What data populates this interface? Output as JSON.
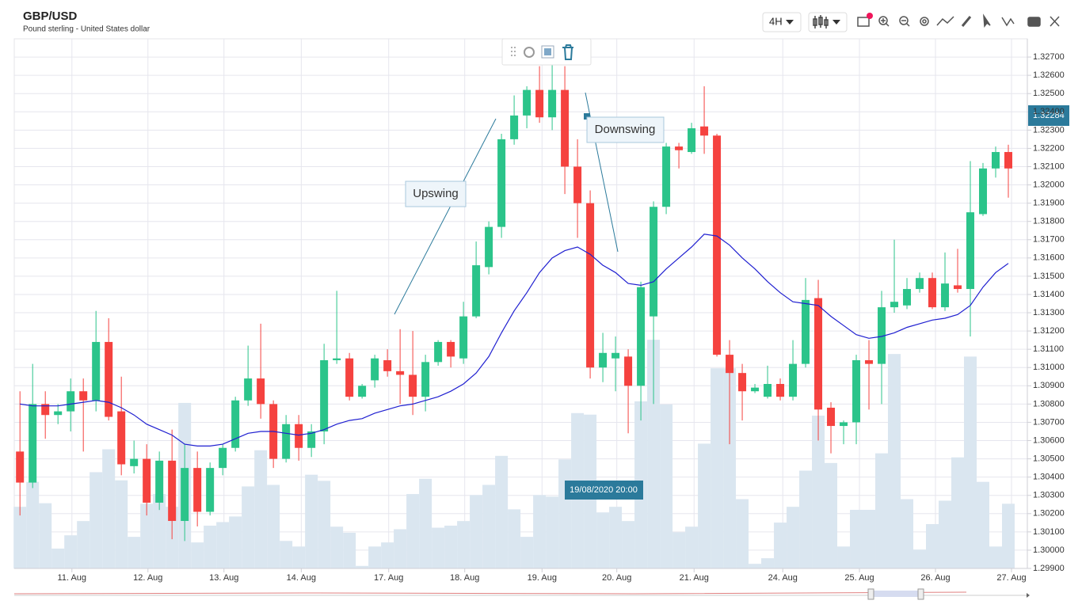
{
  "chart_data": {
    "type": "candlestick",
    "title": "GBP/USD",
    "subtitle": "Pound sterling - United States dollar",
    "timeframe": "4H",
    "open": [
      1.3054,
      1.3037,
      1.308,
      1.3074,
      1.3076,
      1.3087,
      1.3082,
      1.3114,
      1.3076,
      1.3046,
      1.305,
      1.3026,
      1.3049,
      1.3016,
      1.3045,
      1.3021,
      1.3045,
      1.3056,
      1.3082,
      1.3094,
      1.308,
      1.305,
      1.3069,
      1.3056,
      1.3065,
      1.3104,
      1.3105,
      1.3084,
      1.3093,
      1.3104,
      1.3098,
      1.3096,
      1.3084,
      1.3103,
      1.3114,
      1.3105,
      1.3128,
      1.3155,
      1.3177,
      1.3225,
      1.3238,
      1.3252,
      1.3237,
      1.3252,
      1.321,
      1.319,
      1.31,
      1.3105,
      1.3106,
      1.309,
      1.3128,
      1.3188,
      1.3221,
      1.3218,
      1.3232,
      1.3227,
      1.3107,
      1.3097,
      1.3087,
      1.3084,
      1.3091,
      1.3084,
      1.3102,
      1.3138,
      1.3078,
      1.3068,
      1.307,
      1.3104,
      1.3102,
      1.3133,
      1.3134,
      1.3143,
      1.3149,
      1.3133,
      1.3145,
      1.3143,
      1.3184,
      1.3209,
      1.3218
    ],
    "high": [
      1.3087,
      1.3102,
      1.3087,
      1.308,
      1.3094,
      1.3094,
      1.3131,
      1.3127,
      1.3095,
      1.306,
      1.3058,
      1.3054,
      1.3066,
      1.3058,
      1.3054,
      1.3048,
      1.3058,
      1.3084,
      1.3112,
      1.3124,
      1.3082,
      1.3074,
      1.3074,
      1.3069,
      1.3113,
      1.3142,
      1.3108,
      1.3091,
      1.3107,
      1.311,
      1.3121,
      1.312,
      1.3107,
      1.3115,
      1.3115,
      1.3136,
      1.3169,
      1.318,
      1.3228,
      1.3249,
      1.3254,
      1.3265,
      1.3269,
      1.3265,
      1.3225,
      1.3197,
      1.3119,
      1.3117,
      1.311,
      1.3147,
      1.3191,
      1.3223,
      1.3223,
      1.3234,
      1.3254,
      1.3228,
      1.3115,
      1.3102,
      1.3091,
      1.3101,
      1.3094,
      1.3115,
      1.3149,
      1.3148,
      1.3081,
      1.3071,
      1.3107,
      1.3115,
      1.3142,
      1.317,
      1.3149,
      1.3152,
      1.3152,
      1.3163,
      1.3165,
      1.3213,
      1.3212,
      1.3221,
      1.3222
    ],
    "low": [
      1.3019,
      1.3034,
      1.3061,
      1.3069,
      1.3065,
      1.3054,
      1.3076,
      1.3071,
      1.3041,
      1.3042,
      1.3019,
      1.3022,
      1.3006,
      1.3005,
      1.3013,
      1.3019,
      1.3041,
      1.3054,
      1.3079,
      1.3072,
      1.3045,
      1.3048,
      1.3049,
      1.3051,
      1.3058,
      1.3102,
      1.3082,
      1.3083,
      1.3089,
      1.3095,
      1.308,
      1.3074,
      1.3076,
      1.3101,
      1.31,
      1.3102,
      1.3127,
      1.3151,
      1.3171,
      1.3222,
      1.3231,
      1.3234,
      1.323,
      1.3195,
      1.3171,
      1.3094,
      1.3092,
      1.3087,
      1.3064,
      1.3071,
      1.308,
      1.3184,
      1.3209,
      1.3217,
      1.3217,
      1.3106,
      1.3058,
      1.3071,
      1.3086,
      1.3083,
      1.3082,
      1.3082,
      1.31,
      1.306,
      1.3053,
      1.3058,
      1.3058,
      1.3077,
      1.308,
      1.313,
      1.3132,
      1.3141,
      1.3132,
      1.3131,
      1.3141,
      1.3117,
      1.3183,
      1.3204,
      1.3193
    ],
    "close": [
      1.3037,
      1.308,
      1.3074,
      1.3076,
      1.3087,
      1.3082,
      1.3114,
      1.3073,
      1.3047,
      1.305,
      1.3026,
      1.3049,
      1.3016,
      1.3045,
      1.3021,
      1.3045,
      1.3056,
      1.3082,
      1.3094,
      1.308,
      1.305,
      1.3069,
      1.3056,
      1.3065,
      1.3104,
      1.3105,
      1.3084,
      1.309,
      1.3105,
      1.3098,
      1.3096,
      1.3084,
      1.3103,
      1.3114,
      1.3106,
      1.3128,
      1.3156,
      1.3177,
      1.3225,
      1.3238,
      1.3252,
      1.3237,
      1.3252,
      1.321,
      1.319,
      1.31,
      1.3108,
      1.3108,
      1.309,
      1.3144,
      1.3188,
      1.3221,
      1.3219,
      1.3231,
      1.3227,
      1.3107,
      1.3097,
      1.3087,
      1.3089,
      1.3091,
      1.3084,
      1.3102,
      1.3137,
      1.3077,
      1.3068,
      1.307,
      1.3104,
      1.3102,
      1.3133,
      1.3136,
      1.3143,
      1.3149,
      1.3133,
      1.3146,
      1.3143,
      1.3185,
      1.3209,
      1.3218,
      1.3209
    ],
    "volume": [
      12.1,
      17.0,
      12.8,
      3.9,
      6.5,
      9.3,
      18.9,
      23.4,
      17.3,
      6.2,
      12.7,
      14.6,
      12.1,
      32.5,
      5.1,
      8.4,
      9.1,
      10.2,
      16.1,
      23.2,
      16.4,
      5.4,
      4.3,
      18.4,
      17.2,
      8.2,
      7.0,
      0.5,
      4.3,
      5.1,
      7.7,
      14.6,
      17.6,
      8.0,
      8.4,
      9.3,
      14.4,
      16.4,
      22.1,
      11.6,
      6.2,
      14.4,
      14.1,
      21.4,
      30.5,
      30.2,
      11.0,
      12.1,
      9.3,
      32.8,
      44.9,
      32.2,
      7.1,
      8.2,
      24.5,
      39.3,
      39.3,
      13.6,
      0.9,
      2.0,
      9.0,
      12.1,
      19.2,
      30.0,
      20.7,
      4.3,
      11.5,
      11.5,
      22.6,
      42.1,
      13.6,
      3.7,
      8.7,
      13.3,
      21.8,
      41.6,
      17.0,
      4.3,
      12.7
    ],
    "moving_average": [
      1.308,
      1.3079,
      1.3079,
      1.3079,
      1.308,
      1.3081,
      1.3082,
      1.3081,
      1.3078,
      1.3074,
      1.3069,
      1.3066,
      1.3063,
      1.3058,
      1.3057,
      1.3057,
      1.3058,
      1.3061,
      1.3064,
      1.3065,
      1.3065,
      1.3064,
      1.3063,
      1.3064,
      1.3066,
      1.3069,
      1.3071,
      1.3072,
      1.3075,
      1.3077,
      1.3079,
      1.308,
      1.3082,
      1.3084,
      1.3087,
      1.3091,
      1.3097,
      1.3106,
      1.3119,
      1.3131,
      1.3141,
      1.3152,
      1.316,
      1.3164,
      1.3166,
      1.3162,
      1.3156,
      1.3152,
      1.3146,
      1.3145,
      1.3147,
      1.3154,
      1.316,
      1.3166,
      1.3173,
      1.3172,
      1.3167,
      1.316,
      1.3154,
      1.3147,
      1.3141,
      1.3136,
      1.3135,
      1.3134,
      1.3128,
      1.3123,
      1.3118,
      1.3116,
      1.3117,
      1.3119,
      1.3122,
      1.3124,
      1.3126,
      1.3127,
      1.3129,
      1.3134,
      1.3144,
      1.3152,
      1.3157
    ],
    "ylim": [
      1.299,
      1.328
    ],
    "yticks": [
      {
        "value": 1.299,
        "label": "1.29900"
      },
      {
        "value": 1.3,
        "label": "1.30000"
      },
      {
        "value": 1.301,
        "label": "1.30100"
      },
      {
        "value": 1.302,
        "label": "1.30200"
      },
      {
        "value": 1.303,
        "label": "1.30300"
      },
      {
        "value": 1.304,
        "label": "1.30400"
      },
      {
        "value": 1.305,
        "label": "1.30500"
      },
      {
        "value": 1.306,
        "label": "1.30600"
      },
      {
        "value": 1.307,
        "label": "1.30700"
      },
      {
        "value": 1.308,
        "label": "1.30800"
      },
      {
        "value": 1.309,
        "label": "1.30900"
      },
      {
        "value": 1.31,
        "label": "1.31000"
      },
      {
        "value": 1.311,
        "label": "1.31100"
      },
      {
        "value": 1.312,
        "label": "1.31200"
      },
      {
        "value": 1.313,
        "label": "1.31300"
      },
      {
        "value": 1.314,
        "label": "1.31400"
      },
      {
        "value": 1.315,
        "label": "1.31500"
      },
      {
        "value": 1.316,
        "label": "1.31600"
      },
      {
        "value": 1.317,
        "label": "1.31700"
      },
      {
        "value": 1.318,
        "label": "1.31800"
      },
      {
        "value": 1.319,
        "label": "1.31900"
      },
      {
        "value": 1.32,
        "label": "1.32000"
      },
      {
        "value": 1.321,
        "label": "1.32100"
      },
      {
        "value": 1.322,
        "label": "1.32200"
      },
      {
        "value": 1.323,
        "label": "1.32300"
      },
      {
        "value": 1.324,
        "label": "1.32400"
      },
      {
        "value": 1.325,
        "label": "1.32500"
      },
      {
        "value": 1.326,
        "label": "1.32600"
      },
      {
        "value": 1.327,
        "label": "1.32700"
      }
    ],
    "xlim": [
      -0.45,
      79.5
    ],
    "xticks": [
      {
        "value": 4.1,
        "label": "11. Aug"
      },
      {
        "value": 10.1,
        "label": "12. Aug"
      },
      {
        "value": 16.1,
        "label": "13. Aug"
      },
      {
        "value": 22.2,
        "label": "14. Aug"
      },
      {
        "value": 29.1,
        "label": "17. Aug"
      },
      {
        "value": 35.1,
        "label": "18. Aug"
      },
      {
        "value": 41.2,
        "label": "19. Aug"
      },
      {
        "value": 47.1,
        "label": "20. Aug"
      },
      {
        "value": 53.2,
        "label": "21. Aug"
      },
      {
        "value": 60.2,
        "label": "24. Aug"
      },
      {
        "value": 66.25,
        "label": "25. Aug"
      },
      {
        "value": 72.25,
        "label": "26. Aug"
      },
      {
        "value": 78.25,
        "label": "27. Aug"
      }
    ],
    "y2lim": [
      0,
      104
    ],
    "grid": true,
    "up_color": "#2bc48a",
    "down_color": "#f5423f",
    "volume_color": "#dae6f0",
    "ma_color": "#1f1fd0",
    "annotations": [
      "Upswing",
      "Downswing"
    ],
    "crosshair_label": "19/08/2020 20:00",
    "last_price": 1.32284
  }
}
